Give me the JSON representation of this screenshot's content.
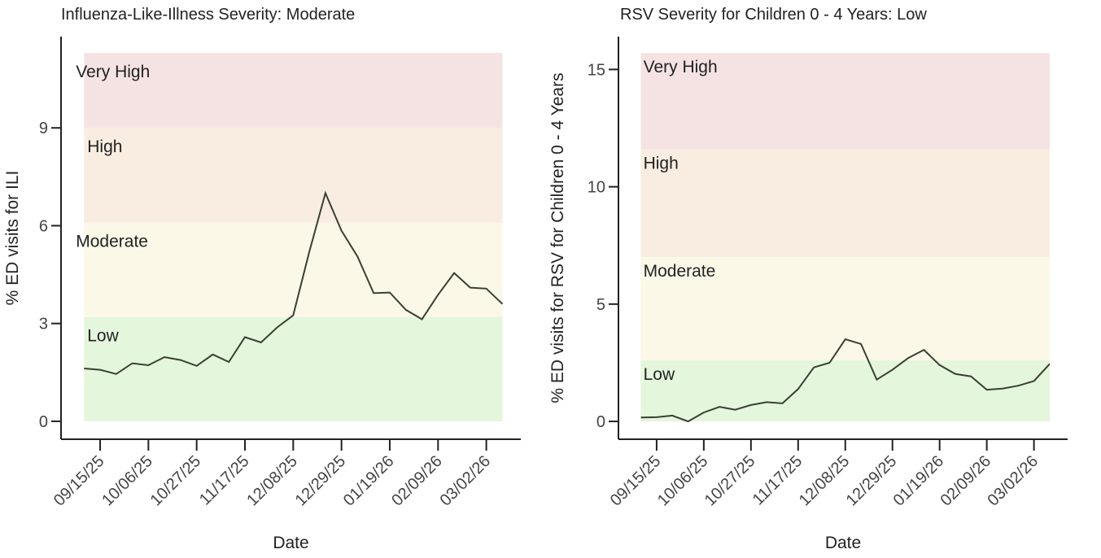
{
  "chart_data": [
    {
      "type": "line",
      "title": "Influenza-Like-Illness Severity: Moderate",
      "x_label": "Date",
      "y_label": "% ED visits for ILI",
      "x": [
        "09/08/25",
        "09/15/25",
        "09/22/25",
        "09/29/25",
        "10/06/25",
        "10/13/25",
        "10/20/25",
        "10/27/25",
        "11/03/25",
        "11/10/25",
        "11/17/25",
        "11/24/25",
        "12/01/25",
        "12/08/25",
        "12/15/25",
        "12/22/25",
        "12/29/25",
        "01/05/26",
        "01/12/26",
        "01/19/26",
        "01/26/26",
        "02/02/26",
        "02/09/26",
        "02/16/26",
        "02/23/26",
        "03/02/26",
        "03/09/26"
      ],
      "series": [
        {
          "color": "#3a3f33",
          "values": [
            1.62,
            1.58,
            1.45,
            1.78,
            1.72,
            1.97,
            1.88,
            1.7,
            2.05,
            1.82,
            2.58,
            2.42,
            2.88,
            3.25,
            5.2,
            7.0,
            5.85,
            5.05,
            3.93,
            3.95,
            3.42,
            3.13,
            3.88,
            4.55,
            4.1,
            4.07,
            3.6
          ]
        }
      ],
      "bands": [
        {
          "label": "Low",
          "from": 0,
          "to": 3.2,
          "color": "#e4f6dc"
        },
        {
          "label": "Moderate",
          "from": 3.2,
          "to": 6.1,
          "color": "#fbf8e8"
        },
        {
          "label": "High",
          "from": 6.1,
          "to": 9.0,
          "color": "#f8ede0"
        },
        {
          "label": "Very High",
          "from": 9.0,
          "to": 11.3,
          "color": "#f5e3e3"
        }
      ],
      "xlim": [
        "08/29/25",
        "03/17/26"
      ],
      "xticks": [
        "09/15/25",
        "10/06/25",
        "10/27/25",
        "11/17/25",
        "12/08/25",
        "12/29/25",
        "01/19/26",
        "02/09/26",
        "03/02/26"
      ],
      "ylim": [
        -0.55,
        11.8
      ],
      "yticks": [
        0,
        3,
        6,
        9
      ]
    },
    {
      "type": "line",
      "title": "RSV Severity for Children 0 - 4 Years: Low",
      "x_label": "Date",
      "y_label": "% ED visits for RSV for Children 0 - 4 Years",
      "x": [
        "09/08/25",
        "09/15/25",
        "09/22/25",
        "09/29/25",
        "10/06/25",
        "10/13/25",
        "10/20/25",
        "10/27/25",
        "11/03/25",
        "11/10/25",
        "11/17/25",
        "11/24/25",
        "12/01/25",
        "12/08/25",
        "12/15/25",
        "12/22/25",
        "12/29/25",
        "01/05/26",
        "01/12/26",
        "01/19/26",
        "01/26/26",
        "02/02/26",
        "02/09/26",
        "02/16/26",
        "02/23/26",
        "03/02/26",
        "03/09/26"
      ],
      "series": [
        {
          "color": "#3a3f33",
          "values": [
            0.17,
            0.18,
            0.25,
            0.0,
            0.38,
            0.62,
            0.5,
            0.7,
            0.82,
            0.77,
            1.38,
            2.3,
            2.5,
            3.5,
            3.3,
            1.78,
            2.2,
            2.7,
            3.05,
            2.4,
            2.02,
            1.92,
            1.35,
            1.4,
            1.52,
            1.72,
            2.45
          ]
        }
      ],
      "bands": [
        {
          "label": "Low",
          "from": 0,
          "to": 2.6,
          "color": "#e4f6dc"
        },
        {
          "label": "Moderate",
          "from": 2.6,
          "to": 7.0,
          "color": "#fbf8e8"
        },
        {
          "label": "High",
          "from": 7.0,
          "to": 11.6,
          "color": "#f8ede0"
        },
        {
          "label": "Very High",
          "from": 11.6,
          "to": 15.7,
          "color": "#f5e3e3"
        }
      ],
      "xlim": [
        "08/29/25",
        "03/17/26"
      ],
      "xticks": [
        "09/15/25",
        "10/06/25",
        "10/27/25",
        "11/17/25",
        "12/08/25",
        "12/29/25",
        "01/19/26",
        "02/09/26",
        "03/02/26"
      ],
      "ylim": [
        -0.76,
        16.4
      ],
      "yticks": [
        0,
        5,
        10,
        15
      ]
    }
  ]
}
